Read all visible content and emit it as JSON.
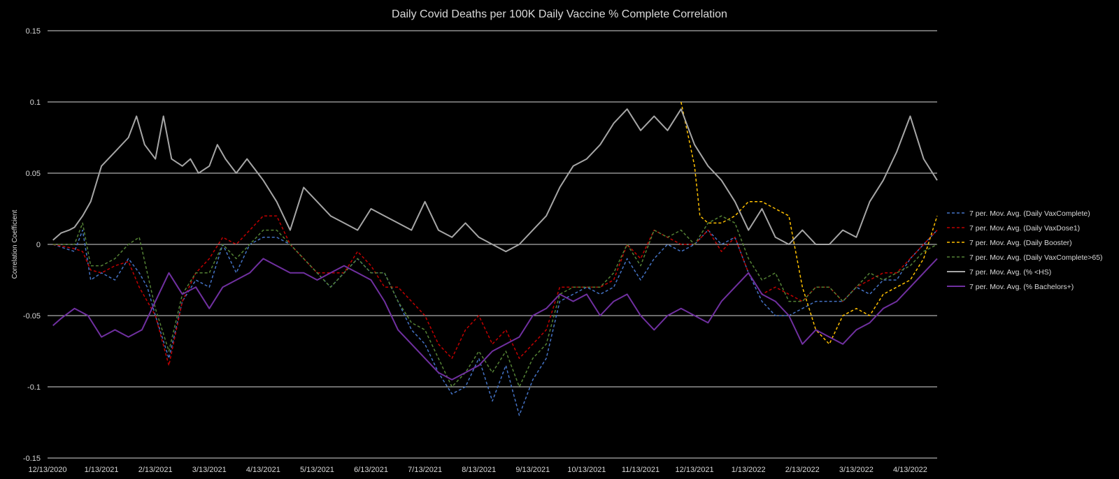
{
  "chart_data": {
    "type": "line",
    "title": "Daily Covid Deaths per 100K Daily Vaccine % Complete Correlation",
    "xlabel": "",
    "ylabel": "Correlation Coefficient",
    "ylim": [
      -0.15,
      0.15
    ],
    "y_ticks": [
      0.15,
      0.1,
      0.05,
      0,
      -0.05,
      -0.1,
      -0.15
    ],
    "y_tick_labels": [
      "0.15",
      "0.1",
      "0.05",
      "0",
      "-0.05",
      "-0.1",
      "-0.15"
    ],
    "x_tick_labels": [
      "12/13/2020",
      "1/13/2021",
      "2/13/2021",
      "3/13/2021",
      "4/13/2021",
      "5/13/2021",
      "6/13/2021",
      "7/13/2021",
      "8/13/2021",
      "9/13/2021",
      "10/13/2021",
      "11/13/2021",
      "12/13/2021",
      "1/13/2022",
      "2/13/2022",
      "3/13/2022",
      "4/13/2022"
    ],
    "x_index_range": [
      0,
      33
    ],
    "grid": true,
    "legend_position": "right",
    "series": [
      {
        "name": "7 per. Mov. Avg. (Daily VaxComplete)",
        "color": "#4472c4",
        "dash": "dashed",
        "x": [
          0.2,
          1.0,
          1.3,
          1.6,
          2.0,
          2.5,
          3.0,
          3.4,
          3.7,
          4.0,
          4.5,
          5.0,
          5.5,
          6.0,
          6.5,
          7.0,
          7.5,
          8.0,
          8.5,
          9.0,
          9.5,
          10.0,
          10.5,
          11.0,
          11.5,
          12.0,
          12.5,
          13.0,
          13.5,
          14.0,
          14.5,
          15.0,
          15.5,
          16.0,
          16.5,
          17.0,
          17.5,
          18.0,
          18.5,
          19.0,
          19.5,
          20.0,
          20.5,
          21.0,
          21.5,
          22.0,
          22.5,
          23.0,
          23.5,
          24.0,
          24.5,
          25.0,
          25.5,
          26.0,
          26.5,
          27.0,
          27.5,
          28.0,
          28.5,
          29.0,
          29.5,
          30.0,
          30.5,
          31.0,
          31.5,
          32.0,
          32.5,
          33.0
        ],
        "values": [
          0.0,
          -0.005,
          0.01,
          -0.025,
          -0.02,
          -0.025,
          -0.01,
          -0.02,
          -0.03,
          -0.05,
          -0.08,
          -0.04,
          -0.025,
          -0.03,
          0.0,
          -0.02,
          0.0,
          0.005,
          0.005,
          0.0,
          -0.01,
          -0.02,
          -0.03,
          -0.02,
          -0.01,
          -0.02,
          -0.02,
          -0.04,
          -0.06,
          -0.07,
          -0.09,
          -0.105,
          -0.1,
          -0.08,
          -0.11,
          -0.085,
          -0.12,
          -0.095,
          -0.08,
          -0.04,
          -0.035,
          -0.03,
          -0.035,
          -0.03,
          -0.01,
          -0.025,
          -0.01,
          0.0,
          -0.005,
          0.0,
          0.01,
          0.0,
          0.005,
          -0.02,
          -0.04,
          -0.05,
          -0.05,
          -0.045,
          -0.04,
          -0.04,
          -0.04,
          -0.03,
          -0.035,
          -0.025,
          -0.025,
          -0.01,
          0.0,
          0.01
        ]
      },
      {
        "name": "7 per. Mov. Avg. (Daily VaxDose1)",
        "color": "#c00000",
        "dash": "dashed",
        "x": [
          0.2,
          1.0,
          1.3,
          1.6,
          2.0,
          2.5,
          3.0,
          3.4,
          3.7,
          4.0,
          4.5,
          5.0,
          5.5,
          6.0,
          6.5,
          7.0,
          7.5,
          8.0,
          8.5,
          9.0,
          9.5,
          10.0,
          10.5,
          11.0,
          11.5,
          12.0,
          12.5,
          13.0,
          13.5,
          14.0,
          14.5,
          15.0,
          15.5,
          16.0,
          16.5,
          17.0,
          17.5,
          18.0,
          18.5,
          19.0,
          19.5,
          20.0,
          20.5,
          21.0,
          21.5,
          22.0,
          22.5,
          23.0,
          23.5,
          24.0,
          24.5,
          25.0,
          25.5,
          26.0,
          26.5,
          27.0,
          27.5,
          28.0,
          28.5,
          29.0,
          29.5,
          30.0,
          30.5,
          31.0,
          31.5,
          32.0,
          32.5,
          33.0
        ],
        "values": [
          0.0,
          -0.003,
          -0.005,
          -0.018,
          -0.02,
          -0.015,
          -0.012,
          -0.03,
          -0.04,
          -0.05,
          -0.085,
          -0.04,
          -0.02,
          -0.01,
          0.005,
          0.0,
          0.01,
          0.02,
          0.02,
          0.0,
          -0.01,
          -0.02,
          -0.02,
          -0.02,
          -0.005,
          -0.015,
          -0.03,
          -0.03,
          -0.04,
          -0.05,
          -0.07,
          -0.08,
          -0.06,
          -0.05,
          -0.07,
          -0.06,
          -0.08,
          -0.07,
          -0.06,
          -0.03,
          -0.03,
          -0.03,
          -0.03,
          -0.025,
          0.0,
          -0.01,
          0.01,
          0.005,
          0.0,
          0.0,
          0.01,
          -0.005,
          0.005,
          -0.02,
          -0.035,
          -0.03,
          -0.035,
          -0.04,
          -0.03,
          -0.03,
          -0.04,
          -0.03,
          -0.025,
          -0.02,
          -0.02,
          -0.01,
          0.0,
          0.01
        ]
      },
      {
        "name": "7 per. Mov. Avg. (Daily Booster)",
        "color": "#ffc000",
        "dash": "dashed",
        "x": [
          23.5,
          24.0,
          24.2,
          24.5,
          25.0,
          25.5,
          26.0,
          26.5,
          27.0,
          27.5,
          27.7,
          28.0,
          28.5,
          29.0,
          29.5,
          30.0,
          30.5,
          31.0,
          31.5,
          32.0,
          32.5,
          33.0
        ],
        "values": [
          0.1,
          0.055,
          0.02,
          0.015,
          0.015,
          0.02,
          0.03,
          0.03,
          0.025,
          0.02,
          0.0,
          -0.03,
          -0.06,
          -0.07,
          -0.05,
          -0.045,
          -0.05,
          -0.035,
          -0.03,
          -0.025,
          -0.01,
          0.02
        ]
      },
      {
        "name": "7 per. Mov. Avg. (Daily VaxComplete>65)",
        "color": "#548235",
        "dash": "dashed",
        "x": [
          0.2,
          1.0,
          1.3,
          1.6,
          2.0,
          2.5,
          3.0,
          3.4,
          3.7,
          4.0,
          4.5,
          5.0,
          5.5,
          6.0,
          6.5,
          7.0,
          7.5,
          8.0,
          8.5,
          9.0,
          9.5,
          10.0,
          10.5,
          11.0,
          11.5,
          12.0,
          12.5,
          13.0,
          13.5,
          14.0,
          14.5,
          15.0,
          15.5,
          16.0,
          16.5,
          17.0,
          17.5,
          18.0,
          18.5,
          19.0,
          19.5,
          20.0,
          20.5,
          21.0,
          21.5,
          22.0,
          22.5,
          23.0,
          23.5,
          24.0,
          24.5,
          25.0,
          25.5,
          26.0,
          26.5,
          27.0,
          27.5,
          28.0,
          28.5,
          29.0,
          29.5,
          30.0,
          30.5,
          31.0,
          31.5,
          32.0,
          32.5,
          33.0
        ],
        "values": [
          0.0,
          0.0,
          0.015,
          -0.015,
          -0.015,
          -0.01,
          0.0,
          0.005,
          -0.02,
          -0.045,
          -0.075,
          -0.035,
          -0.02,
          -0.02,
          0.0,
          -0.01,
          0.0,
          0.01,
          0.01,
          0.0,
          -0.01,
          -0.02,
          -0.03,
          -0.02,
          -0.01,
          -0.02,
          -0.02,
          -0.04,
          -0.055,
          -0.06,
          -0.08,
          -0.1,
          -0.09,
          -0.075,
          -0.09,
          -0.075,
          -0.1,
          -0.08,
          -0.07,
          -0.035,
          -0.03,
          -0.03,
          -0.03,
          -0.02,
          0.0,
          -0.015,
          0.01,
          0.005,
          0.01,
          0.0,
          0.015,
          0.02,
          0.015,
          -0.01,
          -0.025,
          -0.02,
          -0.04,
          -0.04,
          -0.03,
          -0.03,
          -0.04,
          -0.03,
          -0.02,
          -0.025,
          -0.02,
          -0.015,
          -0.005,
          0.0
        ]
      },
      {
        "name": "7 per. Mov. Avg. (% <HS)",
        "color": "#a6a6a6",
        "dash": "solid",
        "x": [
          0.2,
          0.5,
          0.8,
          1.0,
          1.3,
          1.6,
          2.0,
          2.5,
          3.0,
          3.3,
          3.6,
          4.0,
          4.3,
          4.6,
          5.0,
          5.3,
          5.6,
          6.0,
          6.3,
          6.6,
          7.0,
          7.4,
          7.8,
          8.0,
          8.5,
          9.0,
          9.5,
          10.0,
          10.5,
          11.0,
          11.5,
          12.0,
          12.5,
          13.0,
          13.5,
          14.0,
          14.5,
          15.0,
          15.5,
          16.0,
          16.5,
          17.0,
          17.5,
          18.0,
          18.5,
          19.0,
          19.5,
          20.0,
          20.5,
          21.0,
          21.5,
          22.0,
          22.5,
          23.0,
          23.5,
          24.0,
          24.5,
          25.0,
          25.5,
          26.0,
          26.5,
          27.0,
          27.5,
          28.0,
          28.5,
          29.0,
          29.5,
          30.0,
          30.5,
          31.0,
          31.5,
          32.0,
          32.5,
          33.0
        ],
        "values": [
          0.003,
          0.008,
          0.01,
          0.012,
          0.02,
          0.03,
          0.055,
          0.065,
          0.075,
          0.09,
          0.07,
          0.06,
          0.09,
          0.06,
          0.055,
          0.06,
          0.05,
          0.055,
          0.07,
          0.06,
          0.05,
          0.06,
          0.05,
          0.045,
          0.03,
          0.01,
          0.04,
          0.03,
          0.02,
          0.015,
          0.01,
          0.025,
          0.02,
          0.015,
          0.01,
          0.03,
          0.01,
          0.005,
          0.015,
          0.005,
          0.0,
          -0.005,
          0.0,
          0.01,
          0.02,
          0.04,
          0.055,
          0.06,
          0.07,
          0.085,
          0.095,
          0.08,
          0.09,
          0.08,
          0.095,
          0.07,
          0.055,
          0.045,
          0.03,
          0.01,
          0.025,
          0.005,
          0.0,
          0.01,
          0.0,
          0.0,
          0.01,
          0.005,
          0.03,
          0.045,
          0.065,
          0.09,
          0.06,
          0.045
        ]
      },
      {
        "name": "7 per. Mov. Avg. (% Bachelors+)",
        "color": "#7030a0",
        "dash": "solid",
        "x": [
          0.2,
          0.5,
          1.0,
          1.5,
          2.0,
          2.5,
          3.0,
          3.5,
          4.0,
          4.5,
          5.0,
          5.5,
          6.0,
          6.5,
          7.0,
          7.5,
          8.0,
          8.5,
          9.0,
          9.5,
          10.0,
          10.5,
          11.0,
          11.5,
          12.0,
          12.5,
          13.0,
          13.5,
          14.0,
          14.5,
          15.0,
          15.5,
          16.0,
          16.5,
          17.0,
          17.5,
          18.0,
          18.5,
          19.0,
          19.5,
          20.0,
          20.5,
          21.0,
          21.5,
          22.0,
          22.5,
          23.0,
          23.5,
          24.0,
          24.5,
          25.0,
          25.5,
          26.0,
          26.5,
          27.0,
          27.5,
          28.0,
          28.5,
          29.0,
          29.5,
          30.0,
          30.5,
          31.0,
          31.5,
          32.0,
          32.5,
          33.0
        ],
        "values": [
          -0.057,
          -0.052,
          -0.045,
          -0.05,
          -0.065,
          -0.06,
          -0.065,
          -0.06,
          -0.04,
          -0.02,
          -0.035,
          -0.03,
          -0.045,
          -0.03,
          -0.025,
          -0.02,
          -0.01,
          -0.015,
          -0.02,
          -0.02,
          -0.025,
          -0.02,
          -0.015,
          -0.02,
          -0.025,
          -0.04,
          -0.06,
          -0.07,
          -0.08,
          -0.09,
          -0.095,
          -0.09,
          -0.085,
          -0.075,
          -0.07,
          -0.065,
          -0.05,
          -0.045,
          -0.035,
          -0.04,
          -0.035,
          -0.05,
          -0.04,
          -0.035,
          -0.05,
          -0.06,
          -0.05,
          -0.045,
          -0.05,
          -0.055,
          -0.04,
          -0.03,
          -0.02,
          -0.035,
          -0.04,
          -0.05,
          -0.07,
          -0.06,
          -0.065,
          -0.07,
          -0.06,
          -0.055,
          -0.045,
          -0.04,
          -0.03,
          -0.02,
          -0.01
        ]
      }
    ]
  }
}
